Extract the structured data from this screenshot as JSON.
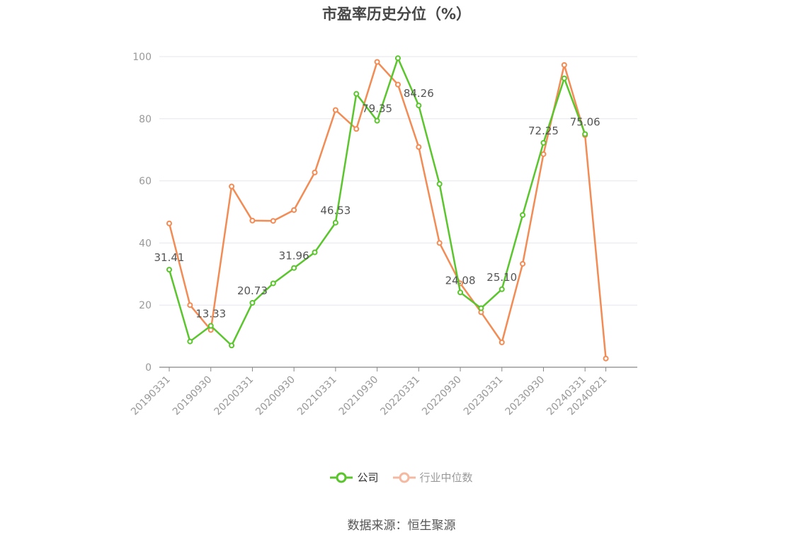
{
  "chart_data": {
    "type": "line",
    "title": "市盈率历史分位（%）",
    "ylim": [
      0,
      100
    ],
    "yticks": [
      0,
      20,
      40,
      60,
      80,
      100
    ],
    "x_tick_labels": [
      "20190331",
      "20190930",
      "20200331",
      "20200930",
      "20210331",
      "20210930",
      "20220331",
      "20220930",
      "20230331",
      "20230930",
      "20240331",
      "20240821"
    ],
    "x": [
      "20190331",
      "20190630",
      "20190930",
      "20191231",
      "20200331",
      "20200630",
      "20200930",
      "20201231",
      "20210331",
      "20210630",
      "20210930",
      "20211231",
      "20220331",
      "20220630",
      "20220930",
      "20221231",
      "20230331",
      "20230630",
      "20230930",
      "20231231",
      "20240331",
      "20240821"
    ],
    "grid": true,
    "legend_position": "bottom",
    "series": [
      {
        "name": "公司",
        "color": "#5ac52c",
        "values": [
          31.41,
          8.3,
          13.33,
          7.0,
          20.73,
          27.0,
          31.96,
          37.0,
          46.53,
          88.0,
          79.35,
          99.5,
          84.26,
          59.0,
          24.08,
          19.0,
          25.1,
          49.0,
          72.25,
          93.0,
          75.06,
          null
        ],
        "labels": [
          31.41,
          null,
          13.33,
          null,
          20.73,
          null,
          31.96,
          null,
          46.53,
          null,
          79.35,
          null,
          84.26,
          null,
          24.08,
          null,
          25.1,
          null,
          72.25,
          null,
          75.06,
          null
        ],
        "label_strings": [
          "31.41",
          null,
          "13.33",
          null,
          "20.73",
          null,
          "31.96",
          null,
          "46.53",
          null,
          "79.35",
          null,
          "84.26",
          null,
          "24.08",
          null,
          "25.10",
          null,
          "72.25",
          null,
          "75.06",
          null
        ]
      },
      {
        "name": "行业中位数",
        "color": "#f28b54",
        "values": [
          46.3,
          20.0,
          12.0,
          58.2,
          47.2,
          47.1,
          50.6,
          62.7,
          82.8,
          76.7,
          98.3,
          91.0,
          70.9,
          40.0,
          27.0,
          17.7,
          8.0,
          33.3,
          68.6,
          97.3,
          74.7,
          2.8
        ]
      }
    ]
  },
  "legend": {
    "items": [
      {
        "label": "公司",
        "color": "#5ac52c"
      },
      {
        "label": "行业中位数",
        "color": "#f4b9a0"
      }
    ]
  },
  "source": "数据来源：恒生聚源"
}
